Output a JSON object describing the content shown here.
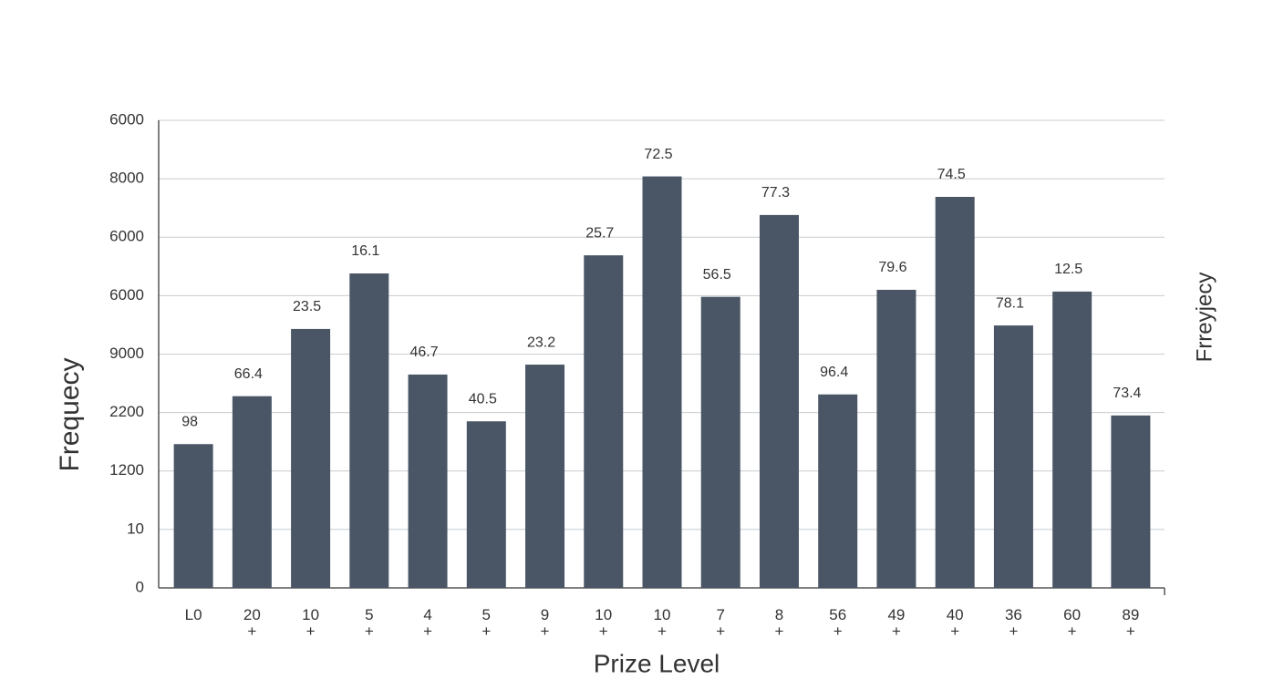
{
  "chart_data": {
    "type": "bar",
    "x_label": "Prize Level",
    "y_label": "Frequecy",
    "y2_label": "Frreyjecy",
    "categories": [
      "L0",
      "20\n+",
      "10\n+",
      "5\n+",
      "4\n+",
      "5\n+",
      "9\n+",
      "10\n+",
      "10\n+",
      "7\n+",
      "8\n+",
      "56\n+",
      "49\n+",
      "40\n+",
      "36\n+",
      "60\n+",
      "89\n+"
    ],
    "values": [
      2.46,
      3.28,
      4.43,
      5.38,
      3.65,
      2.85,
      3.82,
      5.69,
      7.04,
      4.98,
      6.38,
      3.31,
      5.1,
      6.69,
      4.49,
      5.07,
      2.95
    ],
    "annotations": [
      "98",
      "66.4",
      "23.5",
      "16.1",
      "46.7",
      "40.5",
      "23.2",
      "25.7",
      "72.5",
      "56.5",
      "77.3",
      "96.4",
      "79.6",
      "74.5",
      "78.1",
      "12.5",
      "73.4"
    ],
    "color": "#4a5666",
    "ylim": [
      0,
      8
    ],
    "yticks": [
      {
        "value": 0,
        "label": "0"
      },
      {
        "value": 1,
        "label": "10"
      },
      {
        "value": 2,
        "label": "1200"
      },
      {
        "value": 3,
        "label": "2200"
      },
      {
        "value": 4,
        "label": "9000"
      },
      {
        "value": 5,
        "label": "6000"
      },
      {
        "value": 6,
        "label": "6000"
      },
      {
        "value": 7,
        "label": "8000"
      },
      {
        "value": 8,
        "label": "6000"
      }
    ],
    "grid": true
  }
}
